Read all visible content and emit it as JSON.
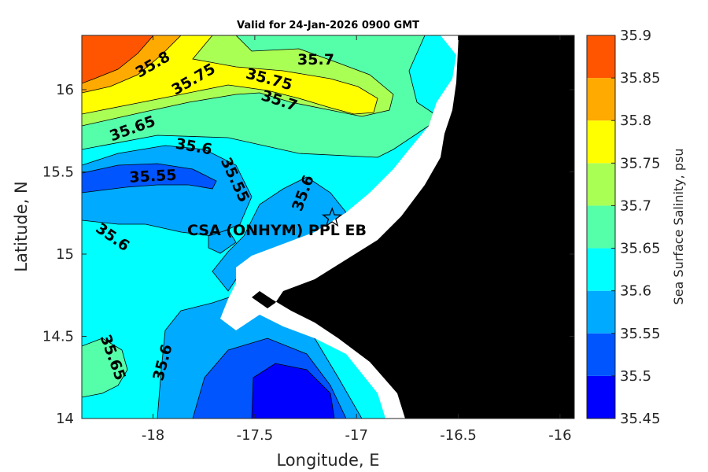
{
  "chart_data": {
    "type": "contour-map",
    "title": "Valid for 24-Jan-2026 0900 GMT",
    "xlabel": "Longitude, E",
    "ylabel": "Latitude, N",
    "xlim": [
      -18.35,
      -15.93
    ],
    "ylim": [
      14.0,
      16.33
    ],
    "x_ticks": [
      -18,
      -17.5,
      -17,
      -16.5,
      -16
    ],
    "x_tick_labels": [
      "-18",
      "-17.5",
      "-17",
      "-16.5",
      "-16"
    ],
    "y_ticks": [
      14,
      14.5,
      15,
      15.5,
      16
    ],
    "y_tick_labels": [
      "14",
      "14.5",
      "15",
      "15.5",
      "16"
    ],
    "colorbar": {
      "label": "Sea Surface Salinity, psu",
      "levels": [
        35.45,
        35.5,
        35.55,
        35.6,
        35.65,
        35.7,
        35.75,
        35.8,
        35.85,
        35.9
      ],
      "level_labels": [
        "35.45",
        "35.5",
        "35.55",
        "35.6",
        "35.65",
        "35.7",
        "35.75",
        "35.8",
        "35.85",
        "35.9"
      ],
      "colors": [
        "#0000ff",
        "#0055ff",
        "#00aaff",
        "#00ffff",
        "#55ffaa",
        "#aaff55",
        "#ffff00",
        "#ffaa00",
        "#ff5500"
      ]
    },
    "contour_labels": [
      {
        "text": "35.8",
        "lon": -18.0,
        "lat": 16.15,
        "angle": -30
      },
      {
        "text": "35.75",
        "lon": -17.8,
        "lat": 16.06,
        "angle": -30
      },
      {
        "text": "35.7",
        "lon": -17.2,
        "lat": 16.18,
        "angle": 0
      },
      {
        "text": "35.75",
        "lon": -17.43,
        "lat": 16.06,
        "angle": 15
      },
      {
        "text": "35.7",
        "lon": -17.38,
        "lat": 15.93,
        "angle": 18
      },
      {
        "text": "35.65",
        "lon": -18.1,
        "lat": 15.76,
        "angle": -20
      },
      {
        "text": "35.6",
        "lon": -17.8,
        "lat": 15.65,
        "angle": 10
      },
      {
        "text": "35.55",
        "lon": -18.0,
        "lat": 15.47,
        "angle": -3
      },
      {
        "text": "35.55",
        "lon": -17.6,
        "lat": 15.45,
        "angle": 65
      },
      {
        "text": "35.6",
        "lon": -17.26,
        "lat": 15.37,
        "angle": -70
      },
      {
        "text": "35.6",
        "lon": -18.2,
        "lat": 15.1,
        "angle": 35
      },
      {
        "text": "35.65",
        "lon": -18.2,
        "lat": 14.37,
        "angle": 70
      },
      {
        "text": "35.6",
        "lon": -17.95,
        "lat": 14.34,
        "angle": -75
      }
    ],
    "site": {
      "name": "CSA (ONHYM) PPL EB",
      "lon": -17.12,
      "lat": 15.22,
      "marker": "star"
    },
    "legend": "none",
    "grid": false
  }
}
